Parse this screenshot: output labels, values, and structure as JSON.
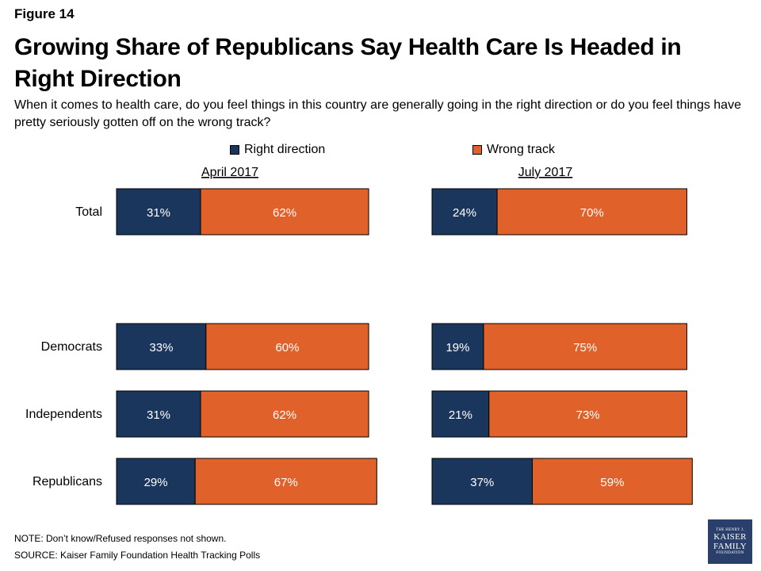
{
  "figure_label": "Figure 14",
  "title": "Growing Share of Republicans Say Health Care Is Headed in Right Direction",
  "subtitle": "When it comes to health care, do you feel things in this country are generally going in the right direction or do you feel things have pretty seriously gotten off on the wrong track?",
  "note": "NOTE: Don’t know/Refused responses not shown.",
  "source": "SOURCE: Kaiser Family Foundation Health Tracking Polls",
  "logo": {
    "line1": "THE HENRY J.",
    "line2": "KAISER",
    "line3": "FAMILY",
    "line4": "FOUNDATION"
  },
  "colors": {
    "right_direction": "#1b365d",
    "wrong_track": "#e0622a"
  },
  "chart_data": {
    "type": "bar",
    "orientation": "horizontal",
    "stacked": true,
    "categories": [
      "Total",
      "Democrats",
      "Independents",
      "Republicans"
    ],
    "legend": [
      "Right direction",
      "Wrong track"
    ],
    "panels": [
      {
        "title": "April 2017",
        "series": [
          {
            "name": "Right direction",
            "values": [
              31,
              33,
              31,
              29
            ]
          },
          {
            "name": "Wrong track",
            "values": [
              62,
              60,
              62,
              67
            ]
          }
        ]
      },
      {
        "title": "July 2017",
        "series": [
          {
            "name": "Right direction",
            "values": [
              24,
              19,
              21,
              37
            ]
          },
          {
            "name": "Wrong track",
            "values": [
              70,
              75,
              73,
              59
            ]
          }
        ]
      }
    ],
    "value_suffix": "%",
    "xlim": [
      0,
      100
    ],
    "grid": false
  }
}
